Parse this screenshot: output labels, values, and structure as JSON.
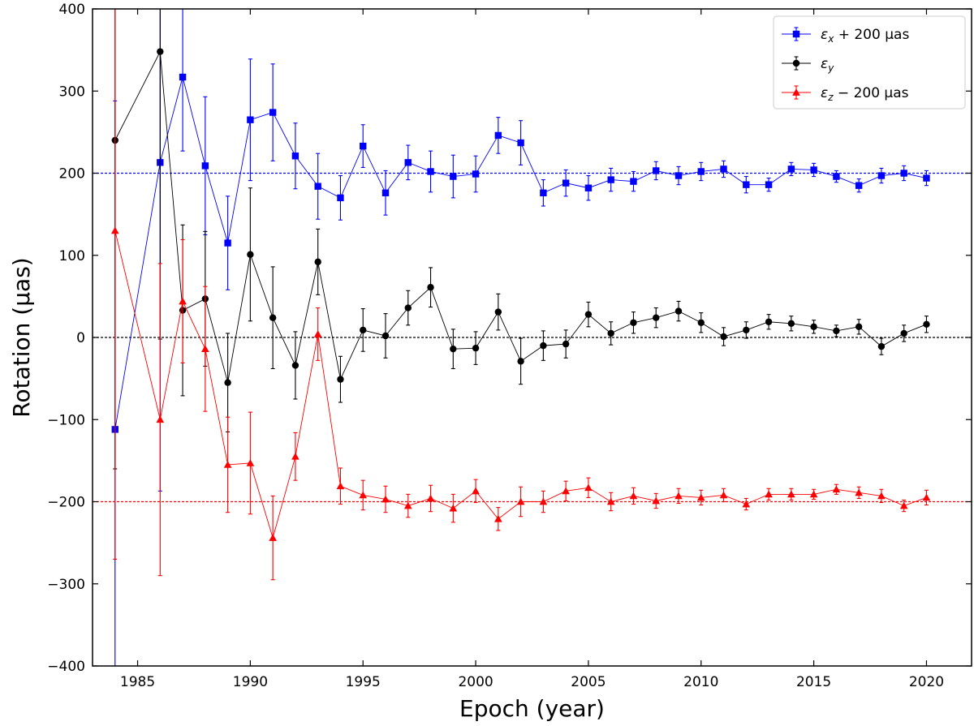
{
  "chart_data": {
    "type": "scatter",
    "xlabel": "Epoch (year)",
    "ylabel": "Rotation (µas)",
    "xlim": [
      1983,
      2022
    ],
    "ylim": [
      -400,
      400
    ],
    "xticks": [
      1985,
      1990,
      1995,
      2000,
      2005,
      2010,
      2015,
      2020
    ],
    "yticks": [
      -400,
      -300,
      -200,
      -100,
      0,
      100,
      200,
      300,
      400
    ],
    "grid": false,
    "legend_position": "top-right",
    "reference_lines": [
      {
        "y": 200,
        "color": "#0000ff",
        "style": "dashed"
      },
      {
        "y": 0,
        "color": "#000000",
        "style": "dashed"
      },
      {
        "y": -200,
        "color": "#ff0000",
        "style": "dashed"
      }
    ],
    "series": [
      {
        "name": "εx + 200 µas",
        "label_base": "ε",
        "label_sub": "x",
        "label_rest": " + 200 µas",
        "color": "#0000ff",
        "marker": "square",
        "x": [
          1984,
          1986,
          1987,
          1988,
          1989,
          1990,
          1991,
          1992,
          1993,
          1994,
          1995,
          1996,
          1997,
          1998,
          1999,
          2000,
          2001,
          2002,
          2003,
          2004,
          2005,
          2006,
          2007,
          2008,
          2009,
          2010,
          2011,
          2012,
          2013,
          2014,
          2015,
          2016,
          2017,
          2018,
          2019,
          2020
        ],
        "y": [
          -112,
          213,
          317,
          209,
          115,
          265,
          274,
          221,
          184,
          170,
          233,
          176,
          213,
          202,
          196,
          199,
          246,
          237,
          176,
          188,
          182,
          192,
          190,
          203,
          197,
          202,
          205,
          186,
          186,
          205,
          204,
          196,
          185,
          197,
          200,
          194
        ],
        "err": [
          400,
          400,
          90,
          84,
          57,
          74,
          59,
          40,
          40,
          27,
          26,
          27,
          21,
          25,
          26,
          22,
          22,
          27,
          16,
          16,
          15,
          14,
          12,
          11,
          11,
          11,
          10,
          10,
          8,
          8,
          8,
          7,
          8,
          9,
          9,
          9
        ]
      },
      {
        "name": "εy",
        "label_base": "ε",
        "label_sub": "y",
        "label_rest": "",
        "color": "#000000",
        "marker": "circle",
        "x": [
          1984,
          1986,
          1987,
          1988,
          1989,
          1990,
          1991,
          1992,
          1993,
          1994,
          1995,
          1996,
          1997,
          1998,
          1999,
          2000,
          2001,
          2002,
          2003,
          2004,
          2005,
          2006,
          2007,
          2008,
          2009,
          2010,
          2011,
          2012,
          2013,
          2014,
          2015,
          2016,
          2017,
          2018,
          2019,
          2020
        ],
        "y": [
          240,
          348,
          33,
          47,
          -55,
          101,
          24,
          -34,
          92,
          -51,
          9,
          2,
          36,
          61,
          -14,
          -13,
          31,
          -29,
          -10,
          -8,
          28,
          5,
          18,
          24,
          32,
          18,
          1,
          9,
          19,
          17,
          13,
          8,
          13,
          -11,
          5,
          16
        ],
        "err": [
          400,
          350,
          104,
          82,
          60,
          81,
          62,
          41,
          40,
          28,
          26,
          27,
          21,
          24,
          24,
          20,
          22,
          28,
          18,
          17,
          15,
          14,
          13,
          12,
          12,
          12,
          11,
          10,
          9,
          9,
          8,
          7,
          9,
          10,
          10,
          10
        ]
      },
      {
        "name": "εz − 200 µas",
        "label_base": "ε",
        "label_sub": "z",
        "label_rest": " − 200 µas",
        "color": "#ff0000",
        "marker": "triangle",
        "x": [
          1984,
          1986,
          1987,
          1988,
          1989,
          1990,
          1991,
          1992,
          1993,
          1994,
          1995,
          1996,
          1997,
          1998,
          1999,
          2000,
          2001,
          2002,
          2003,
          2004,
          2005,
          2006,
          2007,
          2008,
          2009,
          2010,
          2011,
          2012,
          2013,
          2014,
          2015,
          2016,
          2017,
          2018,
          2019,
          2020
        ],
        "y": [
          130,
          -100,
          44,
          -14,
          -155,
          -153,
          -244,
          -145,
          4,
          -181,
          -192,
          -197,
          -205,
          -196,
          -208,
          -187,
          -221,
          -200,
          -200,
          -187,
          -183,
          -200,
          -193,
          -199,
          -193,
          -195,
          -192,
          -203,
          -191,
          -191,
          -191,
          -185,
          -189,
          -193,
          -205,
          -195
        ],
        "err": [
          400,
          190,
          75,
          76,
          58,
          62,
          51,
          29,
          32,
          22,
          18,
          16,
          14,
          16,
          17,
          14,
          14,
          18,
          13,
          12,
          12,
          11,
          10,
          9,
          9,
          9,
          8,
          7,
          7,
          7,
          6,
          6,
          7,
          8,
          7,
          9
        ]
      }
    ]
  }
}
